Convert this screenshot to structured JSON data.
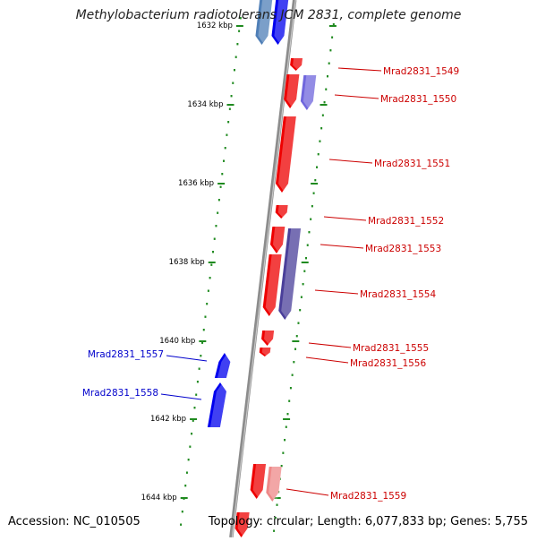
{
  "title": "Methylobacterium radiotolerans JCM 2831, complete genome",
  "accession_text": "Accession: NC_010505",
  "topology_text": "Topology: circular; Length: 6,077,833 bp; Genes: 5,755",
  "colors": {
    "backbone": "#8c8c8c",
    "ruler": "#1f8a1f",
    "forward_gene": "#ee0000",
    "forward_label": "#cc0000",
    "reverse_gene": "#0000ee",
    "reverse_label": "#0000cc",
    "pseudo_blue": "#6f66dd",
    "dark_blue": "#4a3f9a",
    "pink": "#ee8888"
  },
  "kbp_marks": [
    {
      "label": "1632 kbp",
      "pos": 1632
    },
    {
      "label": "1634 kbp",
      "pos": 1634
    },
    {
      "label": "1636 kbp",
      "pos": 1636
    },
    {
      "label": "1638 kbp",
      "pos": 1638
    },
    {
      "label": "1640 kbp",
      "pos": 1640
    },
    {
      "label": "1642 kbp",
      "pos": 1642
    },
    {
      "label": "1644 kbp",
      "pos": 1644
    }
  ],
  "gene_labels": [
    {
      "name": "Mrad2831_1549",
      "strand": "forward"
    },
    {
      "name": "Mrad2831_1550",
      "strand": "forward"
    },
    {
      "name": "Mrad2831_1551",
      "strand": "forward"
    },
    {
      "name": "Mrad2831_1552",
      "strand": "forward"
    },
    {
      "name": "Mrad2831_1553",
      "strand": "forward"
    },
    {
      "name": "Mrad2831_1554",
      "strand": "forward"
    },
    {
      "name": "Mrad2831_1555",
      "strand": "forward"
    },
    {
      "name": "Mrad2831_1556",
      "strand": "forward"
    },
    {
      "name": "Mrad2831_1557",
      "strand": "reverse"
    },
    {
      "name": "Mrad2831_1558",
      "strand": "reverse"
    },
    {
      "name": "Mrad2831_1559",
      "strand": "forward"
    }
  ]
}
